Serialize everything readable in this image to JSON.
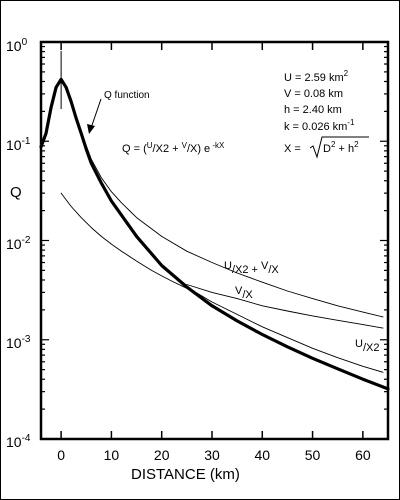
{
  "chart_data": {
    "type": "line",
    "title": "",
    "xlabel": "DISTANCE (km)",
    "ylabel": "Q",
    "xlim": [
      -4,
      65
    ],
    "ylim": [
      0.0001,
      1
    ],
    "yscale": "log",
    "grid": false,
    "x_ticks": [
      0,
      10,
      20,
      30,
      40,
      50,
      60
    ],
    "x_tick_labels": [
      "0",
      "10",
      "20",
      "30",
      "40",
      "50",
      "60"
    ],
    "y_ticks": [
      {
        "value": 1,
        "base": "10",
        "exp": "0"
      },
      {
        "value": 0.1,
        "base": "10",
        "exp": "-1"
      },
      {
        "value": 0.01,
        "base": "10",
        "exp": "-2"
      },
      {
        "value": 0.001,
        "base": "10",
        "exp": "-3"
      },
      {
        "value": 0.0001,
        "base": "10",
        "exp": "-4"
      }
    ],
    "params": {
      "U": {
        "prefix": "U = 2.59 km",
        "sup": "2"
      },
      "V": {
        "text": "V = 0.08 km"
      },
      "h": {
        "text": "h = 2.40 km"
      },
      "k": {
        "prefix": "k = 0.026 km",
        "sup": "-1"
      },
      "X": {
        "lhs": "X = ",
        "d": "D",
        "d_sup": "2",
        "plus": " + h",
        "h_sup": "2"
      }
    },
    "formula": {
      "q": "Q = (",
      "u": "U",
      "x2": "/X2 + ",
      "v": "V",
      "x": "/X) e",
      "exp": " -kX"
    },
    "annotations": {
      "q_function": "Q  function",
      "label_sum": {
        "u": "U",
        "rest1": "/X2 + ",
        "v": "V",
        "rest2": "/X"
      },
      "label_vx": {
        "v": "V",
        "rest": "/X"
      },
      "label_ux2": {
        "u": "U",
        "rest": "/X2"
      }
    },
    "series": [
      {
        "style": "thick",
        "x": [
          -4,
          -3,
          -2,
          -1,
          0,
          1,
          2,
          3,
          4,
          5,
          6,
          8,
          10,
          12,
          15,
          20,
          25,
          30,
          35,
          40,
          45,
          50,
          55,
          60,
          65
        ],
        "y": [
          0.088,
          0.12,
          0.22,
          0.35,
          0.42,
          0.35,
          0.25,
          0.17,
          0.12,
          0.083,
          0.06,
          0.038,
          0.025,
          0.018,
          0.011,
          0.0056,
          0.0034,
          0.0022,
          0.00155,
          0.00113,
          0.00085,
          0.00065,
          0.00051,
          0.0004,
          0.00032
        ]
      },
      {
        "style": "thin",
        "x": [
          5,
          6,
          8,
          10,
          12,
          15,
          20,
          25,
          30,
          35,
          40,
          45,
          50,
          55,
          60,
          64
        ],
        "y": [
          0.09,
          0.066,
          0.043,
          0.031,
          0.024,
          0.017,
          0.011,
          0.0078,
          0.006,
          0.0047,
          0.0038,
          0.0031,
          0.0026,
          0.0022,
          0.0019,
          0.0017
        ]
      },
      {
        "style": "thin",
        "x": [
          0,
          2,
          4,
          6,
          8,
          10,
          12,
          15,
          18,
          20,
          22,
          25
        ],
        "y": [
          0.03,
          0.022,
          0.017,
          0.0135,
          0.011,
          0.0092,
          0.0078,
          0.0062,
          0.005,
          0.0044,
          0.0039,
          0.0033
        ]
      },
      {
        "style": "thin",
        "x": [
          25,
          30,
          35,
          40,
          45,
          50,
          55,
          60,
          64
        ],
        "y": [
          0.0036,
          0.003,
          0.0026,
          0.0022,
          0.00195,
          0.00174,
          0.00157,
          0.00142,
          0.00131
        ]
      },
      {
        "style": "thin",
        "x": [
          25,
          30,
          35,
          40,
          45,
          50,
          55,
          60,
          64
        ],
        "y": [
          0.0034,
          0.0024,
          0.0018,
          0.00135,
          0.00105,
          0.00082,
          0.00066,
          0.00054,
          0.00047
        ]
      }
    ]
  }
}
